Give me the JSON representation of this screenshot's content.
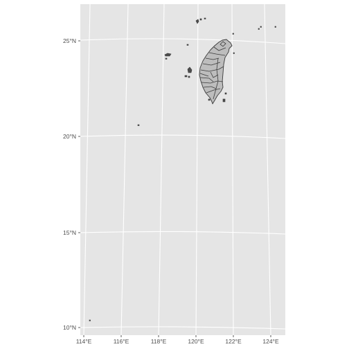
{
  "map": {
    "background_color": "#e5e5e5",
    "gridline_color": "#ffffff",
    "boundary_color": "#3a3a3a",
    "x_tick_labels": [
      "114°E",
      "116°E",
      "118°E",
      "120°E",
      "122°E",
      "124°E"
    ],
    "y_tick_labels": [
      "10°N",
      "15°N",
      "20°N",
      "25°N"
    ],
    "feature": "Taiwan administrative boundaries with outlying islands (Penghu, Kinmen, Matsu, Pratas, Taiping)"
  }
}
